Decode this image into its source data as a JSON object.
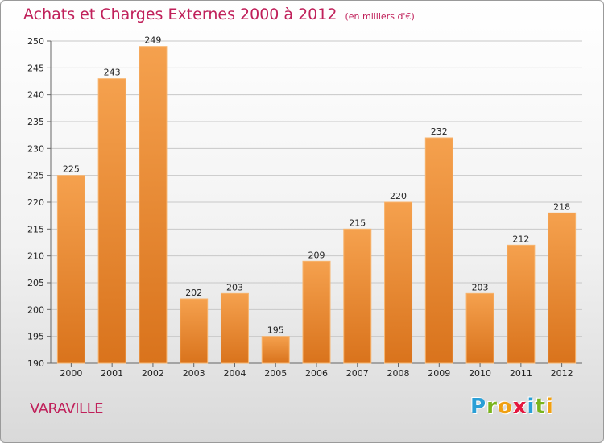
{
  "header": {
    "title": "Achats et Charges Externes 2000 à 2012",
    "unit": "(en milliers d'€)"
  },
  "footer": {
    "town": "VARAVILLE",
    "logo": [
      "P",
      "r",
      "o",
      "x",
      "i",
      "t",
      "i"
    ],
    "logo_colors": [
      "#2a9fd6",
      "#7ab41d",
      "#f0a012",
      "#e4173e",
      "#2a9fd6",
      "#7ab41d",
      "#f0a012"
    ]
  },
  "colors": {
    "bar_light": "#f5a14e",
    "bar_dark": "#d9731c",
    "title": "#c0205a"
  },
  "chart_data": {
    "type": "bar",
    "title": "Achats et Charges Externes 2000 à 2012",
    "xlabel": "",
    "ylabel": "",
    "categories": [
      "2000",
      "2001",
      "2002",
      "2003",
      "2004",
      "2005",
      "2006",
      "2007",
      "2008",
      "2009",
      "2010",
      "2011",
      "2012"
    ],
    "values": [
      225,
      243,
      249,
      202,
      203,
      195,
      209,
      215,
      220,
      232,
      203,
      212,
      218
    ],
    "ylim": [
      190,
      250
    ],
    "yticks": [
      190,
      195,
      200,
      205,
      210,
      215,
      220,
      225,
      230,
      235,
      240,
      245,
      250
    ],
    "grid": true
  }
}
